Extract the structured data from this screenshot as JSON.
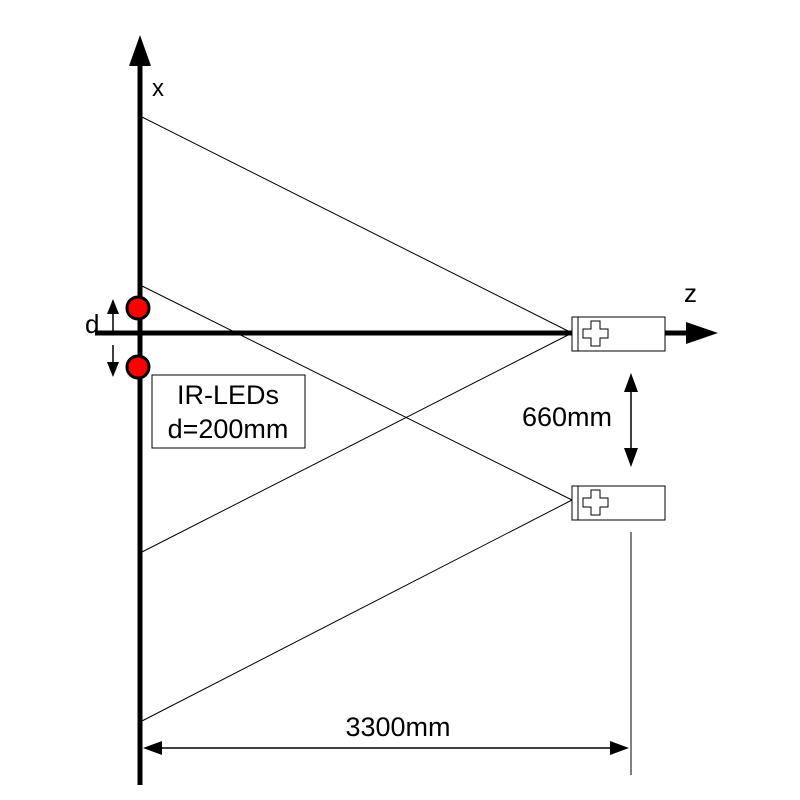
{
  "labels": {
    "x_axis": "x",
    "z_axis": "z",
    "d": "d",
    "box_line1": "IR-LEDs",
    "box_line2": "d=200mm",
    "offset": "660mm",
    "distance": "3300mm"
  },
  "colors": {
    "led": "#ff0000",
    "stroke": "#000000",
    "background": "#ffffff"
  },
  "icons": [
    "cross-icon",
    "arrow-head-icon"
  ]
}
